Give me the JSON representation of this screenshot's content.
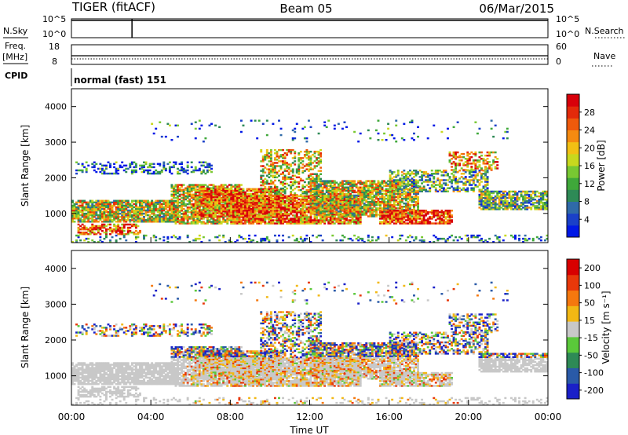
{
  "header": {
    "station": "TIGER (fitACF)",
    "beam": "Beam 05",
    "date": "06/Mar/2015"
  },
  "panels": {
    "nsky": {
      "label": "N.Sky",
      "yticks": [
        "10^5",
        "10^0"
      ],
      "right_label": "N.Search",
      "right_yticks": [
        "10^5",
        "10^0"
      ]
    },
    "freq": {
      "label_line1": "Freq.",
      "label_line2": "[MHz]",
      "yticks": [
        "18",
        "8"
      ],
      "right_label": "Nave",
      "right_yticks": [
        "60",
        "0"
      ]
    },
    "cpid": {
      "label": "CPID",
      "mode_text": "normal (fast) 151"
    }
  },
  "chart_data": [
    {
      "type": "heatmap",
      "title": "",
      "xlabel": "",
      "ylabel": "Slant Range [km]",
      "yticks": [
        "1000",
        "2000",
        "3000",
        "4000"
      ],
      "ylim": [
        180,
        4500
      ],
      "xlim_hours": [
        0,
        24
      ],
      "colorbar": {
        "label": "Power [dB]",
        "ticks": [
          "4",
          "8",
          "12",
          "16",
          "20",
          "24",
          "28"
        ],
        "range": [
          0,
          32
        ],
        "colors": [
          "#0018e6",
          "#1a40c8",
          "#2f6aa8",
          "#2e8a56",
          "#3fa83a",
          "#78c832",
          "#c8d81e",
          "#f2c014",
          "#f58a10",
          "#ef5a0c",
          "#e32a0a",
          "#d8000a"
        ]
      }
    },
    {
      "type": "heatmap",
      "title": "",
      "xlabel": "Time UT",
      "ylabel": "Slant Range [km]",
      "yticks": [
        "1000",
        "2000",
        "3000",
        "4000"
      ],
      "ylim": [
        180,
        4500
      ],
      "xlim_hours": [
        0,
        24
      ],
      "colorbar": {
        "label": "Velocity [m s⁻¹]",
        "ticks": [
          "200",
          "100",
          "50",
          "15",
          "-15",
          "-50",
          "-100",
          "-200"
        ],
        "colors": [
          "#1a20c8",
          "#2a5aa8",
          "#2e8a56",
          "#5ac83a",
          "#c8c8c8",
          "#f2b814",
          "#f5780e",
          "#e8380a",
          "#d80000"
        ]
      }
    }
  ],
  "xaxis": {
    "ticks": [
      "00:00",
      "04:00",
      "08:00",
      "12:00",
      "16:00",
      "20:00",
      "00:00"
    ],
    "label": "Time UT"
  }
}
